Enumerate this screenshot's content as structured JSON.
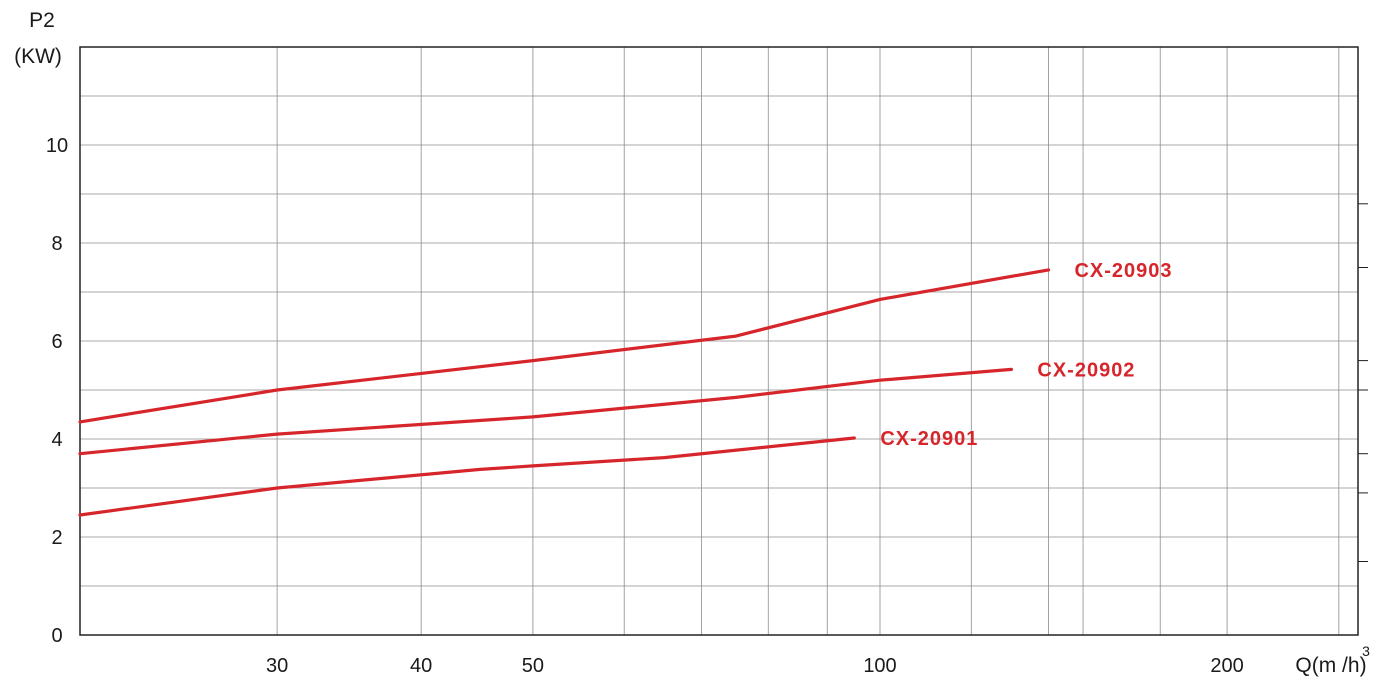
{
  "chart_data": {
    "type": "line",
    "y_axis": {
      "title_line1": "P2",
      "title_line2": "(KW)",
      "ylim": [
        0,
        12
      ],
      "ticks": [
        0,
        2,
        4,
        6,
        8,
        10
      ]
    },
    "x_axis": {
      "title": "Q(m /h)",
      "title_superscript": "3",
      "tick_values": [
        30,
        40,
        50,
        100,
        200
      ],
      "tick_labels": [
        "30",
        "40",
        "50",
        "100",
        "200"
      ]
    },
    "grid": true,
    "line_color": "#d7262b",
    "series": [
      {
        "name": "CX-20903",
        "points": [
          [
            20,
            4.35
          ],
          [
            30,
            5.0
          ],
          [
            50,
            5.6
          ],
          [
            75,
            6.1
          ],
          [
            100,
            6.85
          ],
          [
            140,
            7.45
          ]
        ]
      },
      {
        "name": "CX-20902",
        "points": [
          [
            20,
            3.7
          ],
          [
            30,
            4.1
          ],
          [
            50,
            4.45
          ],
          [
            75,
            4.85
          ],
          [
            100,
            5.2
          ],
          [
            130,
            5.42
          ]
        ]
      },
      {
        "name": "CX-20901",
        "points": [
          [
            20,
            2.45
          ],
          [
            30,
            3.0
          ],
          [
            45,
            3.38
          ],
          [
            50,
            3.45
          ],
          [
            65,
            3.62
          ],
          [
            95,
            4.02
          ]
        ]
      }
    ]
  }
}
